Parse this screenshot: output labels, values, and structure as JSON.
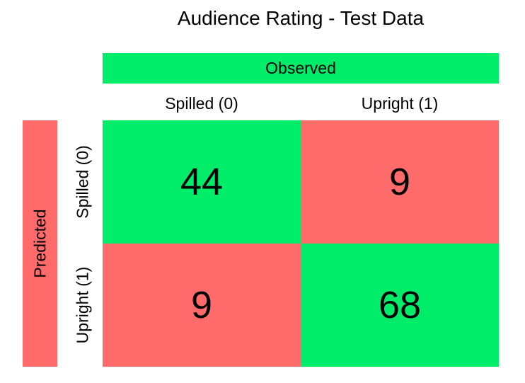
{
  "colors": {
    "correct": "#00ED6A",
    "incorrect": "#FF6B6B"
  },
  "chart_data": {
    "type": "heatmap",
    "title": "Audience Rating - Test Data",
    "x_axis_label": "Observed",
    "y_axis_label": "Predicted",
    "columns": [
      "Spilled (0)",
      "Upright (1)"
    ],
    "rows": [
      "Spilled (0)",
      "Upright (1)"
    ],
    "values": [
      [
        44,
        9
      ],
      [
        9,
        68
      ]
    ]
  }
}
